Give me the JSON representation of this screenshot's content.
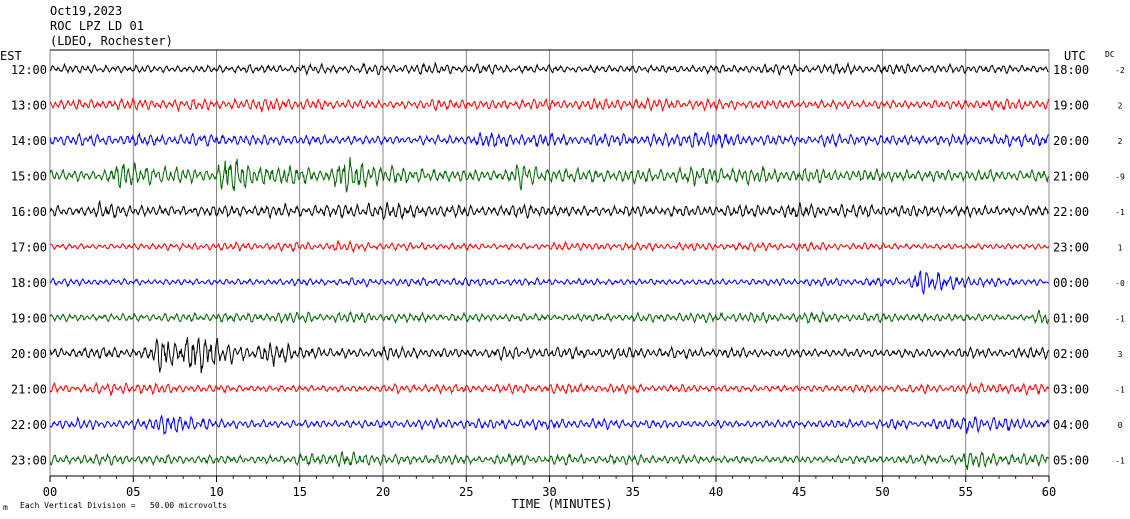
{
  "header": {
    "date": "Oct19,2023",
    "station": "ROC LPZ LD 01",
    "network": "(LDEO, Rochester)"
  },
  "chart_data": {
    "type": "line",
    "title": "",
    "left_axis_label": "EST",
    "right_axis_label": "UTC",
    "dc_label": "DC",
    "xlabel": "TIME (MINUTES)",
    "xlim": [
      0,
      60
    ],
    "x_ticks": [
      "00",
      "05",
      "10",
      "15",
      "20",
      "25",
      "30",
      "35",
      "40",
      "45",
      "50",
      "55",
      "60"
    ],
    "scale_note": "Each Vertical Division =   50.00 microvolts",
    "grid": "vertical lines every 5 minutes",
    "traces": [
      {
        "est": "12:00",
        "utc": "18:00",
        "dc": "-2",
        "color": "#000000",
        "amplitude": 0.5,
        "events": []
      },
      {
        "est": "13:00",
        "utc": "19:00",
        "dc": "2",
        "color": "#ff0000",
        "amplitude": 0.55,
        "events": [
          {
            "minute": 12.5,
            "scale": 1.6
          },
          {
            "minute": 23,
            "scale": 1.3
          }
        ]
      },
      {
        "est": "14:00",
        "utc": "20:00",
        "dc": "2",
        "color": "#0000ff",
        "amplitude": 0.6,
        "events": [
          {
            "minute": 26,
            "scale": 1.5
          },
          {
            "minute": 38.5,
            "scale": 1.8
          },
          {
            "minute": 46.5,
            "scale": 1.5
          },
          {
            "minute": 59.5,
            "scale": 1.5
          }
        ]
      },
      {
        "est": "15:00",
        "utc": "21:00",
        "dc": "-9",
        "color": "#006400",
        "amplitude": 0.75,
        "events": [
          {
            "minute": 4,
            "scale": 2.2
          },
          {
            "minute": 10.5,
            "scale": 2.6
          },
          {
            "minute": 17.5,
            "scale": 2.5
          },
          {
            "minute": 28,
            "scale": 2.0
          },
          {
            "minute": 38,
            "scale": 1.4
          }
        ]
      },
      {
        "est": "16:00",
        "utc": "22:00",
        "dc": "-1",
        "color": "#000000",
        "amplitude": 0.65,
        "events": [
          {
            "minute": 3,
            "scale": 1.6
          },
          {
            "minute": 19,
            "scale": 1.4
          },
          {
            "minute": 28,
            "scale": 1.4
          }
        ]
      },
      {
        "est": "17:00",
        "utc": "23:00",
        "dc": "1",
        "color": "#ff0000",
        "amplitude": 0.4,
        "events": [
          {
            "minute": 17,
            "scale": 1.3
          },
          {
            "minute": 30.5,
            "scale": 1.5
          }
        ]
      },
      {
        "est": "18:00",
        "utc": "00:00",
        "dc": "-0",
        "color": "#0000ff",
        "amplitude": 0.4,
        "events": [
          {
            "minute": 52,
            "scale": 3.5
          }
        ]
      },
      {
        "est": "19:00",
        "utc": "01:00",
        "dc": "-1",
        "color": "#006400",
        "amplitude": 0.5,
        "events": [
          {
            "minute": 59.5,
            "scale": 1.8
          }
        ]
      },
      {
        "est": "20:00",
        "utc": "02:00",
        "dc": "3",
        "color": "#000000",
        "amplitude": 0.55,
        "events": [
          {
            "minute": 6.5,
            "scale": 3.8
          },
          {
            "minute": 8.5,
            "scale": 3.4
          },
          {
            "minute": 13,
            "scale": 2.2
          },
          {
            "minute": 20,
            "scale": 1.5
          },
          {
            "minute": 27,
            "scale": 1.4
          }
        ]
      },
      {
        "est": "21:00",
        "utc": "03:00",
        "dc": "-1",
        "color": "#ff0000",
        "amplitude": 0.45,
        "events": [
          {
            "minute": 3.5,
            "scale": 1.5
          },
          {
            "minute": 21,
            "scale": 1.3
          },
          {
            "minute": 57,
            "scale": 1.4
          }
        ]
      },
      {
        "est": "22:00",
        "utc": "04:00",
        "dc": "0",
        "color": "#0000ff",
        "amplitude": 0.5,
        "events": [
          {
            "minute": 6.5,
            "scale": 2.6
          },
          {
            "minute": 55,
            "scale": 2.0
          }
        ]
      },
      {
        "est": "23:00",
        "utc": "05:00",
        "dc": "-1",
        "color": "#006400",
        "amplitude": 0.5,
        "events": [
          {
            "minute": 15,
            "scale": 1.8
          },
          {
            "minute": 17.5,
            "scale": 1.7
          },
          {
            "minute": 55,
            "scale": 1.8
          }
        ]
      }
    ]
  }
}
